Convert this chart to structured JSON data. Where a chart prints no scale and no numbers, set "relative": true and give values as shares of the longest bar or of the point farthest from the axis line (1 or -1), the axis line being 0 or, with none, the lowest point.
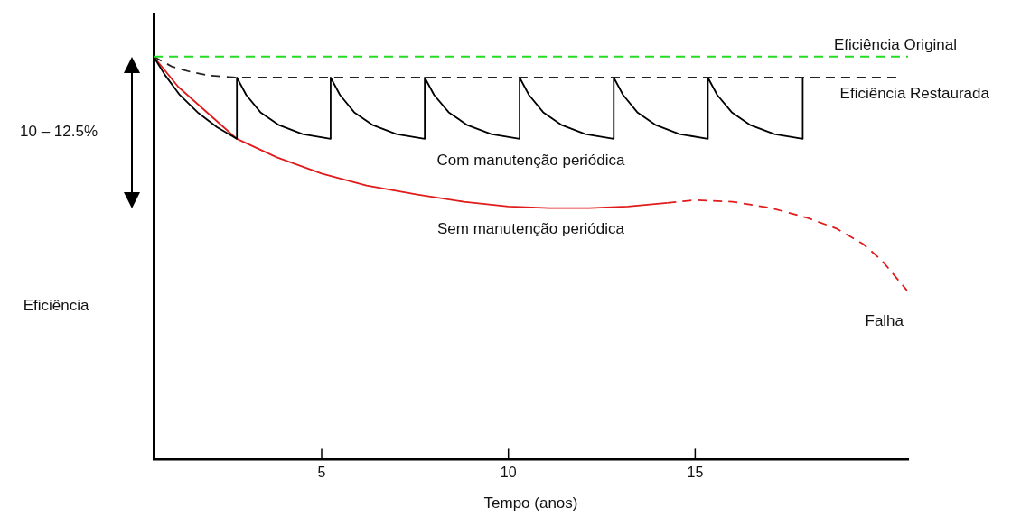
{
  "chart_data": {
    "type": "line",
    "xlabel": "Tempo (anos)",
    "ylabel": "Eficiência",
    "relative": true,
    "xlim": [
      0.5,
      20.7
    ],
    "xticks": [
      5,
      10,
      15
    ],
    "grid": false,
    "legend": false,
    "marker": "none",
    "ref_lines": [
      {
        "axis": "y",
        "value": 1,
        "label": "Eficiência Original",
        "color": "#22dd22",
        "line_style": "dashed"
      }
    ],
    "series": [
      {
        "name": "Eficiência Restaurada",
        "color": "#222222",
        "line_style": "dashed",
        "x": [
          0.5,
          1,
          1.5,
          2,
          2.73,
          20.4
        ],
        "values": [
          1,
          0.975,
          0.962,
          0.953,
          0.948,
          0.948
        ]
      },
      {
        "name": "Com manutenção periódica",
        "color": "#000000",
        "line_style": "solid",
        "x": [
          0.5,
          0.8,
          1.2,
          1.7,
          2.2,
          2.73,
          2.73,
          2.98,
          3.36,
          3.86,
          4.49,
          5.24,
          5.24,
          5.49,
          5.87,
          6.37,
          7.0,
          7.76,
          7.76,
          8.01,
          8.4,
          8.9,
          9.54,
          10.3,
          10.3,
          10.55,
          10.93,
          11.43,
          12.06,
          12.82,
          12.82,
          13.07,
          13.45,
          13.95,
          14.58,
          15.34,
          15.34,
          15.59,
          15.98,
          16.48,
          17.12,
          17.88,
          17.88
        ],
        "values": [
          1,
          0.955,
          0.905,
          0.86,
          0.825,
          0.796,
          0.948,
          0.905,
          0.862,
          0.83,
          0.808,
          0.796,
          0.948,
          0.905,
          0.862,
          0.83,
          0.808,
          0.796,
          0.948,
          0.905,
          0.862,
          0.83,
          0.808,
          0.796,
          0.948,
          0.905,
          0.862,
          0.83,
          0.808,
          0.796,
          0.948,
          0.905,
          0.862,
          0.83,
          0.808,
          0.796,
          0.948,
          0.905,
          0.862,
          0.83,
          0.808,
          0.796,
          0.948
        ]
      },
      {
        "name": "Sem manutenção periódica",
        "color": "#e01b1b",
        "line_style": "solid",
        "x": [
          0.5,
          1.16,
          1.9,
          2.73,
          3.8,
          5,
          6.2,
          7.56,
          8.8,
          10,
          11.1,
          12.17,
          13.2,
          14.25
        ],
        "values": [
          1,
          0.925,
          0.864,
          0.796,
          0.75,
          0.71,
          0.68,
          0.658,
          0.64,
          0.628,
          0.624,
          0.624,
          0.628,
          0.637
        ]
      },
      {
        "color": "#e01b1b",
        "line_style": "dashed",
        "x": [
          14.25,
          15,
          16,
          17.05,
          18,
          18.77,
          19.5,
          20,
          20.67
        ],
        "values": [
          0.637,
          0.644,
          0.64,
          0.624,
          0.6,
          0.574,
          0.535,
          0.494,
          0.42
        ]
      }
    ],
    "annotations": [
      "10 – 12.5%",
      {
        "text": "Falha",
        "x": 20.67,
        "y": 0.42
      }
    ]
  }
}
